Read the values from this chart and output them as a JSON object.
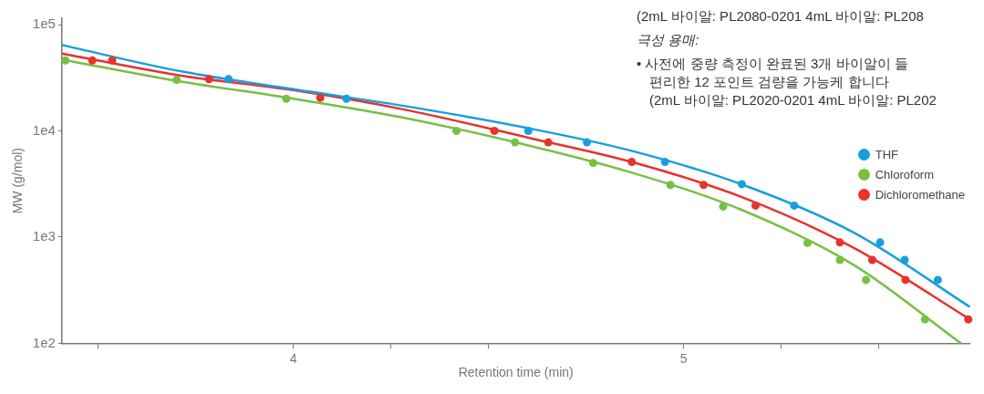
{
  "chart_data": {
    "type": "scatter",
    "xlabel": "Retention time (min)",
    "ylabel": "MW (g/mol)",
    "log": "y",
    "grid": false,
    "legend": "right",
    "marker": "circle",
    "xlim": [
      3.407,
      5.733
    ],
    "ylim": [
      100,
      115000
    ],
    "xticks": [
      {
        "value": 3.5,
        "label": null
      },
      4,
      {
        "value": 4.25,
        "label": null
      },
      {
        "value": 4.5,
        "label": null
      },
      5,
      {
        "value": 5.25,
        "label": null
      },
      {
        "value": 5.5,
        "label": null
      }
    ],
    "yticks": [
      {
        "value": 100,
        "label": "1e2"
      },
      {
        "value": 1000,
        "label": "1e3"
      },
      {
        "value": 10000,
        "label": "1e4"
      },
      {
        "value": 100000,
        "label": "1e5"
      }
    ],
    "annotations": [
      "(2mL 바이알: PL2080-0201 4mL 바이알: PL208",
      "극성 용매:",
      "• 사전에 중량 측정이 완료된 3개 바이알이 들",
      "편리한 12 포인트 검량을 가능케 합니다",
      "(2mL 바이알: PL2020-0201 4mL 바이알: PL202"
    ],
    "series": [
      {
        "type": "line",
        "marker": "none",
        "color": "#1a9de0",
        "line_style": "solid",
        "x": [
          3.407,
          3.713,
          4,
          4.287,
          4.602,
          4.862,
          5.149,
          5.436,
          5.733
        ],
        "values": [
          64300,
          36300,
          24700,
          17100,
          10600,
          6550,
          3130,
          1100,
          220
        ]
      },
      {
        "type": "line",
        "marker": "none",
        "color": "#e8322b",
        "line_style": "solid",
        "x": [
          3.407,
          3.713,
          4,
          4.287,
          4.602,
          4.862,
          5.149,
          5.436,
          5.733
        ],
        "values": [
          53500,
          33100,
          24200,
          15800,
          8630,
          5150,
          2380,
          790,
          168
        ]
      },
      {
        "type": "line",
        "marker": "none",
        "color": "#77c043",
        "line_style": "solid",
        "x": [
          3.407,
          3.713,
          4,
          4.287,
          4.602,
          4.862,
          5.149,
          5.436,
          5.71
        ],
        "values": [
          47000,
          29100,
          20100,
          13200,
          7300,
          4100,
          1800,
          545,
          100
        ]
      },
      {
        "name": "THF",
        "color": "#1a9de0",
        "x": [
          3.834,
          4.136,
          4.602,
          4.752,
          4.952,
          5.149,
          5.283,
          5.503,
          5.566,
          5.651
        ],
        "values": [
          30700,
          20100,
          10000,
          7800,
          5100,
          3150,
          1980,
          890,
          610,
          395
        ]
      },
      {
        "name": "Chloroform",
        "color": "#77c043",
        "x": [
          3.416,
          3.701,
          3.982,
          4.418,
          4.568,
          4.768,
          4.966,
          5.101,
          5.317,
          5.4,
          5.467,
          5.618
        ],
        "values": [
          46100,
          30200,
          20100,
          10000,
          7800,
          4990,
          3100,
          1940,
          880,
          610,
          395,
          168
        ]
      },
      {
        "name": "Dichloromethane",
        "color": "#e8322b",
        "x": [
          3.485,
          3.536,
          3.784,
          4.069,
          4.515,
          4.653,
          4.867,
          5.051,
          5.184,
          5.4,
          5.483,
          5.568,
          5.729
        ],
        "values": [
          46100,
          46100,
          30700,
          20500,
          10000,
          7800,
          5100,
          3100,
          1980,
          890,
          610,
          395,
          168
        ]
      }
    ]
  }
}
